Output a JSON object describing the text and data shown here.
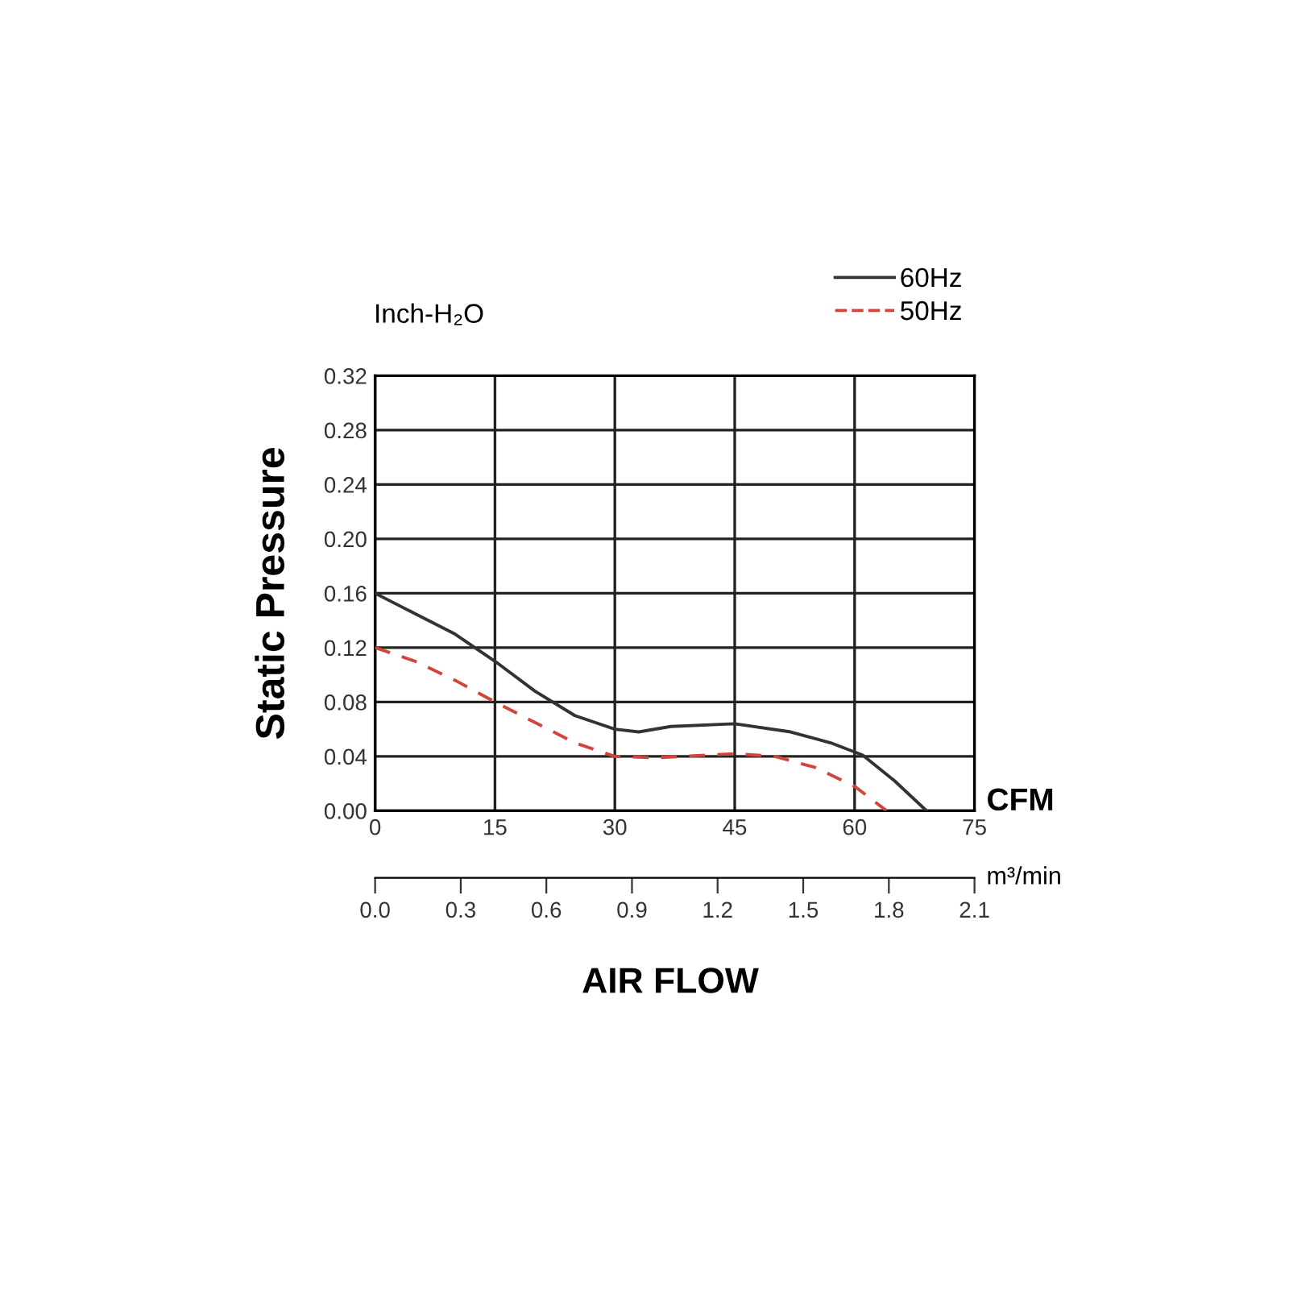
{
  "chart_data": {
    "type": "line",
    "ylabel": "Static Pressure",
    "xlabel": "CFM",
    "x2label": "m³/min",
    "annotations": [
      "Inch-H₂O",
      "AIR FLOW"
    ],
    "series": [
      {
        "name": "60Hz",
        "color": "#333333",
        "line_style": "solid",
        "x": [
          0,
          5,
          10,
          15,
          20,
          25,
          30,
          33,
          37,
          45,
          52,
          57,
          61,
          65,
          69
        ],
        "values": [
          0.16,
          0.145,
          0.13,
          0.11,
          0.088,
          0.07,
          0.06,
          0.058,
          0.062,
          0.064,
          0.058,
          0.05,
          0.041,
          0.022,
          0.0
        ]
      },
      {
        "name": "50Hz",
        "color": "#d0463a",
        "line_style": "dashed",
        "x": [
          0,
          5,
          10,
          15,
          20,
          25,
          30,
          35,
          45,
          50,
          55,
          60,
          64
        ],
        "values": [
          0.12,
          0.11,
          0.096,
          0.08,
          0.065,
          0.05,
          0.04,
          0.039,
          0.042,
          0.04,
          0.032,
          0.018,
          0.0
        ]
      }
    ],
    "xlim": [
      0,
      75
    ],
    "xticks": [
      0,
      15,
      30,
      45,
      60,
      75
    ],
    "ylim": [
      0,
      0.32
    ],
    "yticks": [
      {
        "value": 0,
        "label": "0.00"
      },
      0.04,
      0.08,
      0.12,
      0.16,
      {
        "value": 0.2,
        "label": "0.20"
      },
      {
        "value": 0.24,
        "label": "0.24"
      },
      0.28,
      0.32
    ],
    "x2lim": [
      0,
      2.1
    ],
    "x2ticks": [
      {
        "value": 0,
        "label": "0.0"
      },
      0.3,
      0.6,
      0.9,
      1.2,
      1.5,
      1.8,
      2.1
    ],
    "grid": true,
    "legend": "top right",
    "marker": "none"
  }
}
